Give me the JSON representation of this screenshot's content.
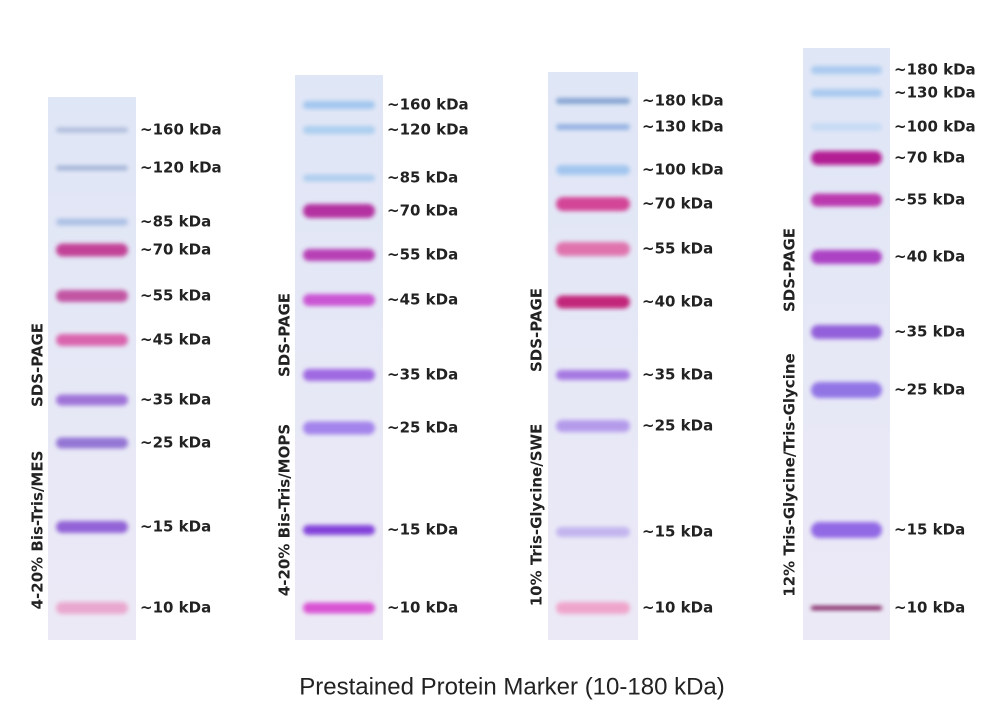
{
  "gels": [
    {
      "lines": [
        "4-20% Bis-Tris/MES",
        "SDS-PAGE"
      ],
      "bands": [
        "~160 kDa",
        "~120 kDa",
        "~85 kDa",
        "~70 kDa",
        "~55 kDa",
        "~45 kDa",
        "~35 kDa",
        "~25 kDa",
        "~15 kDa",
        "~10 kDa"
      ]
    },
    {
      "lines": [
        "4-20% Bis-Tris/MOPS",
        "SDS-PAGE"
      ],
      "bands": [
        "~160 kDa",
        "~120 kDa",
        "~85 kDa",
        "~70 kDa",
        "~55 kDa",
        "~45 kDa",
        "~35 kDa",
        "~25 kDa",
        "~15 kDa",
        "~10 kDa"
      ]
    },
    {
      "lines": [
        "10% Tris-Glycine/SWE",
        "SDS-PAGE"
      ],
      "bands": [
        "~180 kDa",
        "~130 kDa",
        "~100 kDa",
        "~70 kDa",
        "~55 kDa",
        "~40 kDa",
        "~35 kDa",
        "~25 kDa",
        "~15 kDa",
        "~10 kDa"
      ]
    },
    {
      "lines": [
        "12% Tris-Glycine/Tris-Glycine",
        "SDS-PAGE"
      ],
      "bands": [
        "~180 kDa",
        "~130 kDa",
        "~100 kDa",
        "~70 kDa",
        "~55 kDa",
        "~40 kDa",
        "~35 kDa",
        "~25 kDa",
        "~15 kDa",
        "~10 kDa"
      ]
    }
  ],
  "caption": "Prestained Protein Marker (10-180 kDa)"
}
